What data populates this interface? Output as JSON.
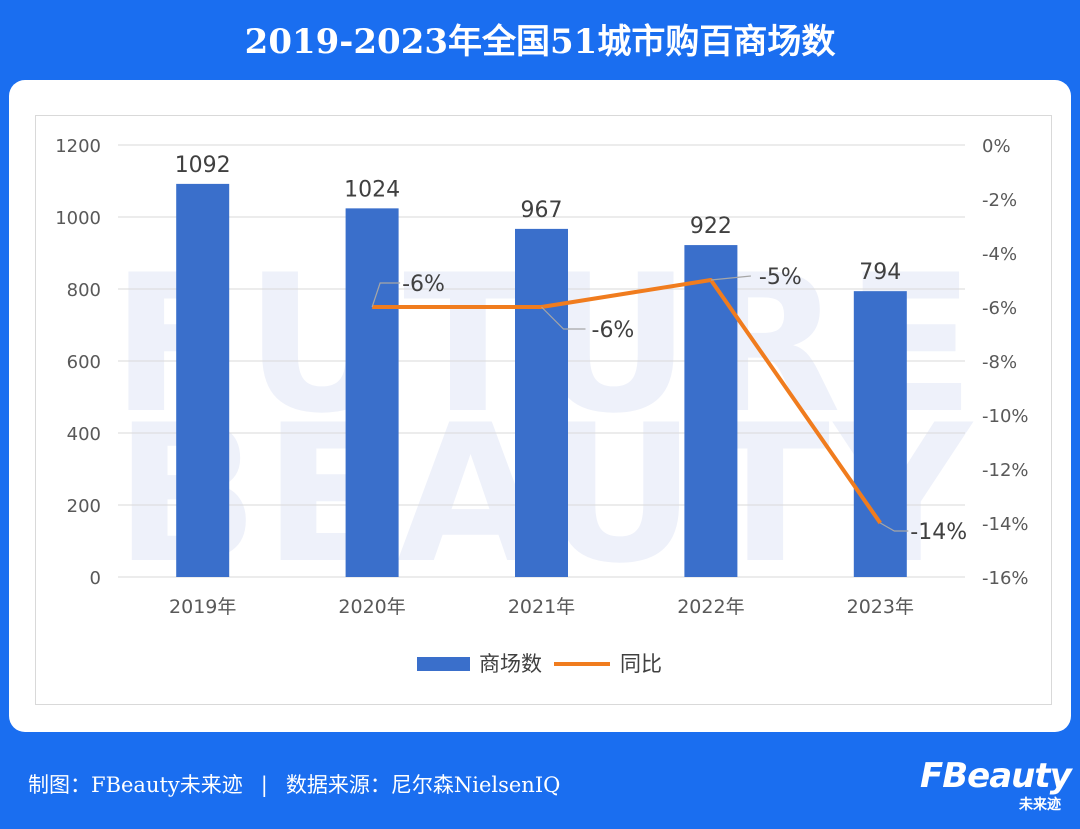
{
  "title": "2019-2023年全国51城市购百商场数",
  "footer": {
    "credit": "制图：FBeauty未来迹",
    "separator": "|",
    "source": "数据来源：尼尔森NielsenIQ"
  },
  "logo": {
    "main": "FBeauty",
    "sub": "未来迹"
  },
  "watermark": [
    "FUTURE",
    "BEAUTY"
  ],
  "colors": {
    "bar": "#3a6fcb",
    "line": "#f07c1e",
    "background": "#1a6ef0"
  },
  "chart_data": {
    "type": "bar",
    "categories": [
      "2019年",
      "2020年",
      "2021年",
      "2022年",
      "2023年"
    ],
    "series": [
      {
        "name": "商场数",
        "type": "bar",
        "axis": "left",
        "values": [
          1092,
          1024,
          967,
          922,
          794
        ],
        "labels": [
          "1092",
          "1024",
          "967",
          "922",
          "794"
        ]
      },
      {
        "name": "同比",
        "type": "line",
        "axis": "right",
        "values": [
          null,
          -6,
          -6,
          -5,
          -14
        ],
        "labels": [
          "",
          "-6%",
          "-6%",
          "-5%",
          "-14%"
        ]
      }
    ],
    "y_left": {
      "min": 0,
      "max": 1200,
      "ticks": [
        "0",
        "200",
        "400",
        "600",
        "800",
        "1000",
        "1200"
      ]
    },
    "y_right": {
      "min": -16,
      "max": 0,
      "ticks": [
        "-16%",
        "-14%",
        "-12%",
        "-10%",
        "-8%",
        "-6%",
        "-4%",
        "-2%",
        "0%"
      ]
    },
    "grid": true,
    "legend": "bottom"
  }
}
